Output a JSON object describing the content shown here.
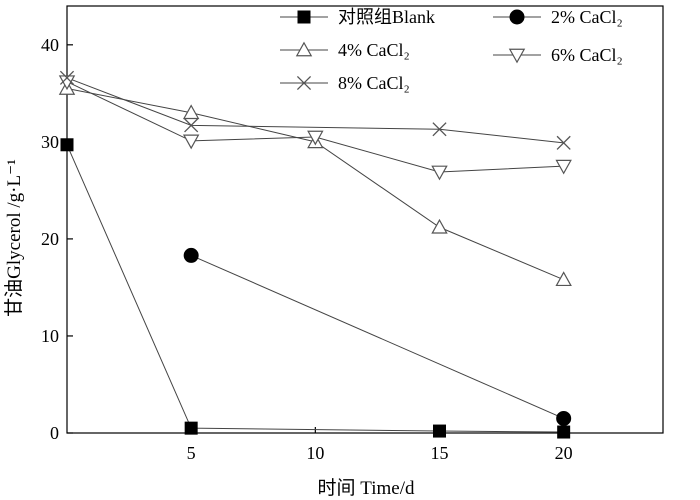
{
  "chart_data": {
    "type": "line",
    "title": "",
    "xlabel": "时间 Time/d",
    "ylabel": "甘油Glycerol /g·L⁻¹",
    "xlim": [
      0,
      24
    ],
    "ylim": [
      0,
      44
    ],
    "xticks": [
      5,
      10,
      15,
      20
    ],
    "xtick_labels": [
      "5",
      "10",
      "15",
      "20"
    ],
    "yticks": [
      0,
      10,
      20,
      30,
      40
    ],
    "ytick_labels": [
      "0",
      "10",
      "20",
      "30",
      "40"
    ],
    "grid": false,
    "legend_position": "top",
    "series": [
      {
        "name": "对照组Blank",
        "marker": "square-filled",
        "x": [
          0,
          5,
          15,
          20
        ],
        "y": [
          29.7,
          0.5,
          0.2,
          0.1
        ]
      },
      {
        "name": "2% CaCl₂",
        "marker": "circle-filled",
        "x": [
          5,
          20
        ],
        "y": [
          18.3,
          1.5
        ]
      },
      {
        "name": "4% CaCl₂",
        "marker": "triangle-up-open",
        "x": [
          0,
          5,
          10,
          15,
          20
        ],
        "y": [
          35.5,
          33.0,
          30.0,
          21.2,
          15.8
        ]
      },
      {
        "name": "6% CaCl₂",
        "marker": "triangle-down-open",
        "x": [
          0,
          5,
          10,
          15,
          20
        ],
        "y": [
          36.2,
          30.1,
          30.5,
          26.9,
          27.5
        ]
      },
      {
        "name": "8% CaCl₂",
        "marker": "cross",
        "x": [
          0,
          5,
          15,
          20
        ],
        "y": [
          36.6,
          31.7,
          31.3,
          29.9
        ]
      }
    ]
  }
}
